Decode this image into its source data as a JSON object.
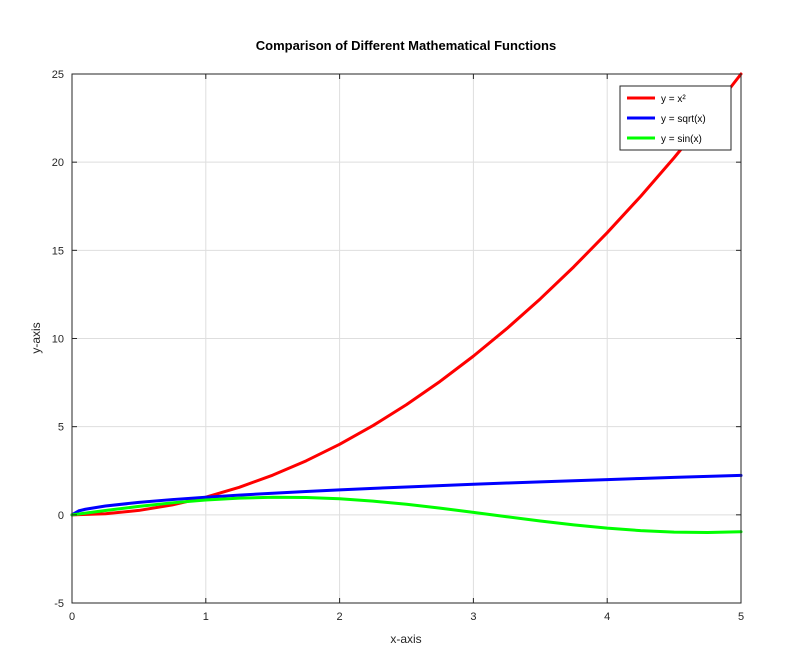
{
  "chart_data": {
    "type": "line",
    "title": "Comparison of Different Mathematical Functions",
    "xlabel": "x-axis",
    "ylabel": "y-axis",
    "xlim": [
      0,
      5
    ],
    "ylim": [
      -5,
      25
    ],
    "xticks": [
      0,
      1,
      2,
      3,
      4,
      5
    ],
    "yticks": [
      -5,
      0,
      5,
      10,
      15,
      20,
      25
    ],
    "grid": true,
    "legend_position": "top-right",
    "series": [
      {
        "name": "y = x²",
        "color": "#ff0000",
        "x": [
          0,
          0.25,
          0.5,
          0.75,
          1,
          1.25,
          1.5,
          1.75,
          2,
          2.25,
          2.5,
          2.75,
          3,
          3.25,
          3.5,
          3.75,
          4,
          4.25,
          4.5,
          4.75,
          5
        ],
        "y": [
          0,
          0.0625,
          0.25,
          0.5625,
          1,
          1.5625,
          2.25,
          3.0625,
          4,
          5.0625,
          6.25,
          7.5625,
          9,
          10.5625,
          12.25,
          14.0625,
          16,
          18.0625,
          20.25,
          22.5625,
          25
        ]
      },
      {
        "name": "y = sqrt(x)",
        "color": "#0000ff",
        "x": [
          0,
          0.05,
          0.1,
          0.25,
          0.5,
          0.75,
          1,
          1.25,
          1.5,
          1.75,
          2,
          2.25,
          2.5,
          2.75,
          3,
          3.25,
          3.5,
          3.75,
          4,
          4.25,
          4.5,
          4.75,
          5
        ],
        "y": [
          0,
          0.224,
          0.316,
          0.5,
          0.707,
          0.866,
          1,
          1.118,
          1.225,
          1.323,
          1.414,
          1.5,
          1.581,
          1.658,
          1.732,
          1.803,
          1.871,
          1.936,
          2,
          2.062,
          2.121,
          2.179,
          2.236
        ]
      },
      {
        "name": "y = sin(x)",
        "color": "#00ff00",
        "x": [
          0,
          0.25,
          0.5,
          0.75,
          1,
          1.25,
          1.5,
          1.75,
          2,
          2.25,
          2.5,
          2.75,
          3,
          3.25,
          3.5,
          3.75,
          4,
          4.25,
          4.5,
          4.75,
          5
        ],
        "y": [
          0,
          0.247,
          0.479,
          0.682,
          0.841,
          0.949,
          0.997,
          0.984,
          0.909,
          0.778,
          0.598,
          0.382,
          0.141,
          -0.108,
          -0.351,
          -0.572,
          -0.757,
          -0.895,
          -0.978,
          -0.999,
          -0.959
        ]
      }
    ]
  }
}
